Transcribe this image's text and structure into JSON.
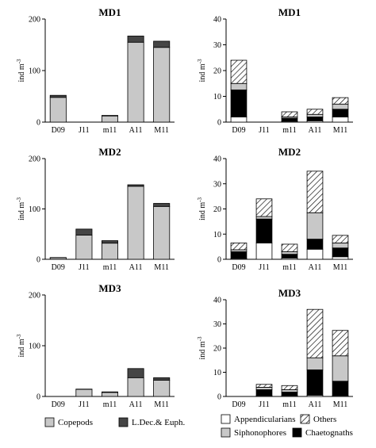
{
  "chart_data": [
    {
      "type": "bar",
      "stacked": true,
      "title": "MD1",
      "ylabel": "ind m-3",
      "ylim": [
        0,
        200
      ],
      "yticks": [
        0,
        100,
        200
      ],
      "categories": [
        "D09",
        "J11",
        "m11",
        "A11",
        "M11"
      ],
      "series": [
        {
          "name": "Copepods",
          "values": [
            48,
            0,
            12,
            155,
            145
          ]
        },
        {
          "name": "L.Dec.& Euph.",
          "values": [
            4,
            0,
            1,
            12,
            12
          ]
        }
      ]
    },
    {
      "type": "bar",
      "stacked": true,
      "title": "MD1",
      "ylabel": "ind m-3",
      "ylim": [
        0,
        40
      ],
      "yticks": [
        0,
        10,
        20,
        30,
        40
      ],
      "categories": [
        "D09",
        "J11",
        "m11",
        "A11",
        "M11"
      ],
      "series": [
        {
          "name": "Appendicularians",
          "values": [
            2,
            0,
            0.3,
            0.5,
            2
          ]
        },
        {
          "name": "Chaetognaths",
          "values": [
            10.5,
            0,
            1.2,
            1.5,
            3
          ]
        },
        {
          "name": "Siphonophores",
          "values": [
            2.5,
            0,
            0.5,
            1,
            2
          ]
        },
        {
          "name": "Others",
          "values": [
            9,
            0,
            2,
            2,
            2.5
          ]
        }
      ]
    },
    {
      "type": "bar",
      "stacked": true,
      "title": "MD2",
      "ylabel": "ind m-3",
      "ylim": [
        0,
        200
      ],
      "yticks": [
        0,
        100,
        200
      ],
      "categories": [
        "D09",
        "J11",
        "m11",
        "A11",
        "M11"
      ],
      "series": [
        {
          "name": "Copepods",
          "values": [
            3,
            48,
            32,
            145,
            105
          ]
        },
        {
          "name": "L.Dec.& Euph.",
          "values": [
            0.5,
            12,
            5,
            3,
            6
          ]
        }
      ]
    },
    {
      "type": "bar",
      "stacked": true,
      "title": "MD2",
      "ylabel": "ind m-3",
      "ylim": [
        0,
        40
      ],
      "yticks": [
        0,
        10,
        20,
        30,
        40
      ],
      "categories": [
        "D09",
        "J11",
        "m11",
        "A11",
        "M11"
      ],
      "series": [
        {
          "name": "Appendicularians",
          "values": [
            0.3,
            6.5,
            0.5,
            4,
            1
          ]
        },
        {
          "name": "Chaetognaths",
          "values": [
            2.7,
            9.5,
            1.5,
            4,
            3.5
          ]
        },
        {
          "name": "Siphonophores",
          "values": [
            0.8,
            1,
            1,
            10.5,
            2
          ]
        },
        {
          "name": "Others",
          "values": [
            2.7,
            7,
            3,
            16.5,
            3
          ]
        }
      ]
    },
    {
      "type": "bar",
      "stacked": true,
      "title": "MD3",
      "ylabel": "ind m-3",
      "ylim": [
        0,
        200
      ],
      "yticks": [
        0,
        100,
        200
      ],
      "categories": [
        "D09",
        "J11",
        "m11",
        "A11",
        "M11"
      ],
      "series": [
        {
          "name": "Copepods",
          "values": [
            0,
            14,
            8,
            37,
            32
          ]
        },
        {
          "name": "L.Dec.& Euph.",
          "values": [
            0,
            0.5,
            1,
            18,
            5
          ]
        }
      ]
    },
    {
      "type": "bar",
      "stacked": true,
      "title": "MD3",
      "ylabel": "ind m-3",
      "ylim": [
        0,
        40
      ],
      "yticks": [
        0,
        10,
        20,
        30,
        40
      ],
      "categories": [
        "D09",
        "J11",
        "m11",
        "A11",
        "M11"
      ],
      "series": [
        {
          "name": "Appendicularians",
          "values": [
            0,
            0.3,
            0.3,
            0.5,
            0.3
          ]
        },
        {
          "name": "Chaetognaths",
          "values": [
            0,
            2.5,
            1.5,
            10.5,
            6
          ]
        },
        {
          "name": "Siphonophores",
          "values": [
            0,
            1,
            1,
            5,
            10.5
          ]
        },
        {
          "name": "Others",
          "values": [
            0,
            1.2,
            1.7,
            20,
            10.5
          ]
        }
      ]
    }
  ],
  "legends": {
    "left": [
      {
        "label": "Copepods",
        "fill": "#c8c8c8"
      },
      {
        "label": "L.Dec.& Euph.",
        "fill": "#454545"
      }
    ],
    "right": [
      {
        "label": "Appendicularians",
        "fill": "#ffffff"
      },
      {
        "label": "Others",
        "fill": "hatch"
      },
      {
        "label": "Siphonophores",
        "fill": "#c8c8c8"
      },
      {
        "label": "Chaetognaths",
        "fill": "#000000"
      }
    ]
  },
  "colors": {
    "Copepods": "#c8c8c8",
    "L.Dec.& Euph.": "#454545",
    "Appendicularians": "#ffffff",
    "Chaetognaths": "#000000",
    "Siphonophores": "#c8c8c8",
    "Others": "hatch"
  }
}
